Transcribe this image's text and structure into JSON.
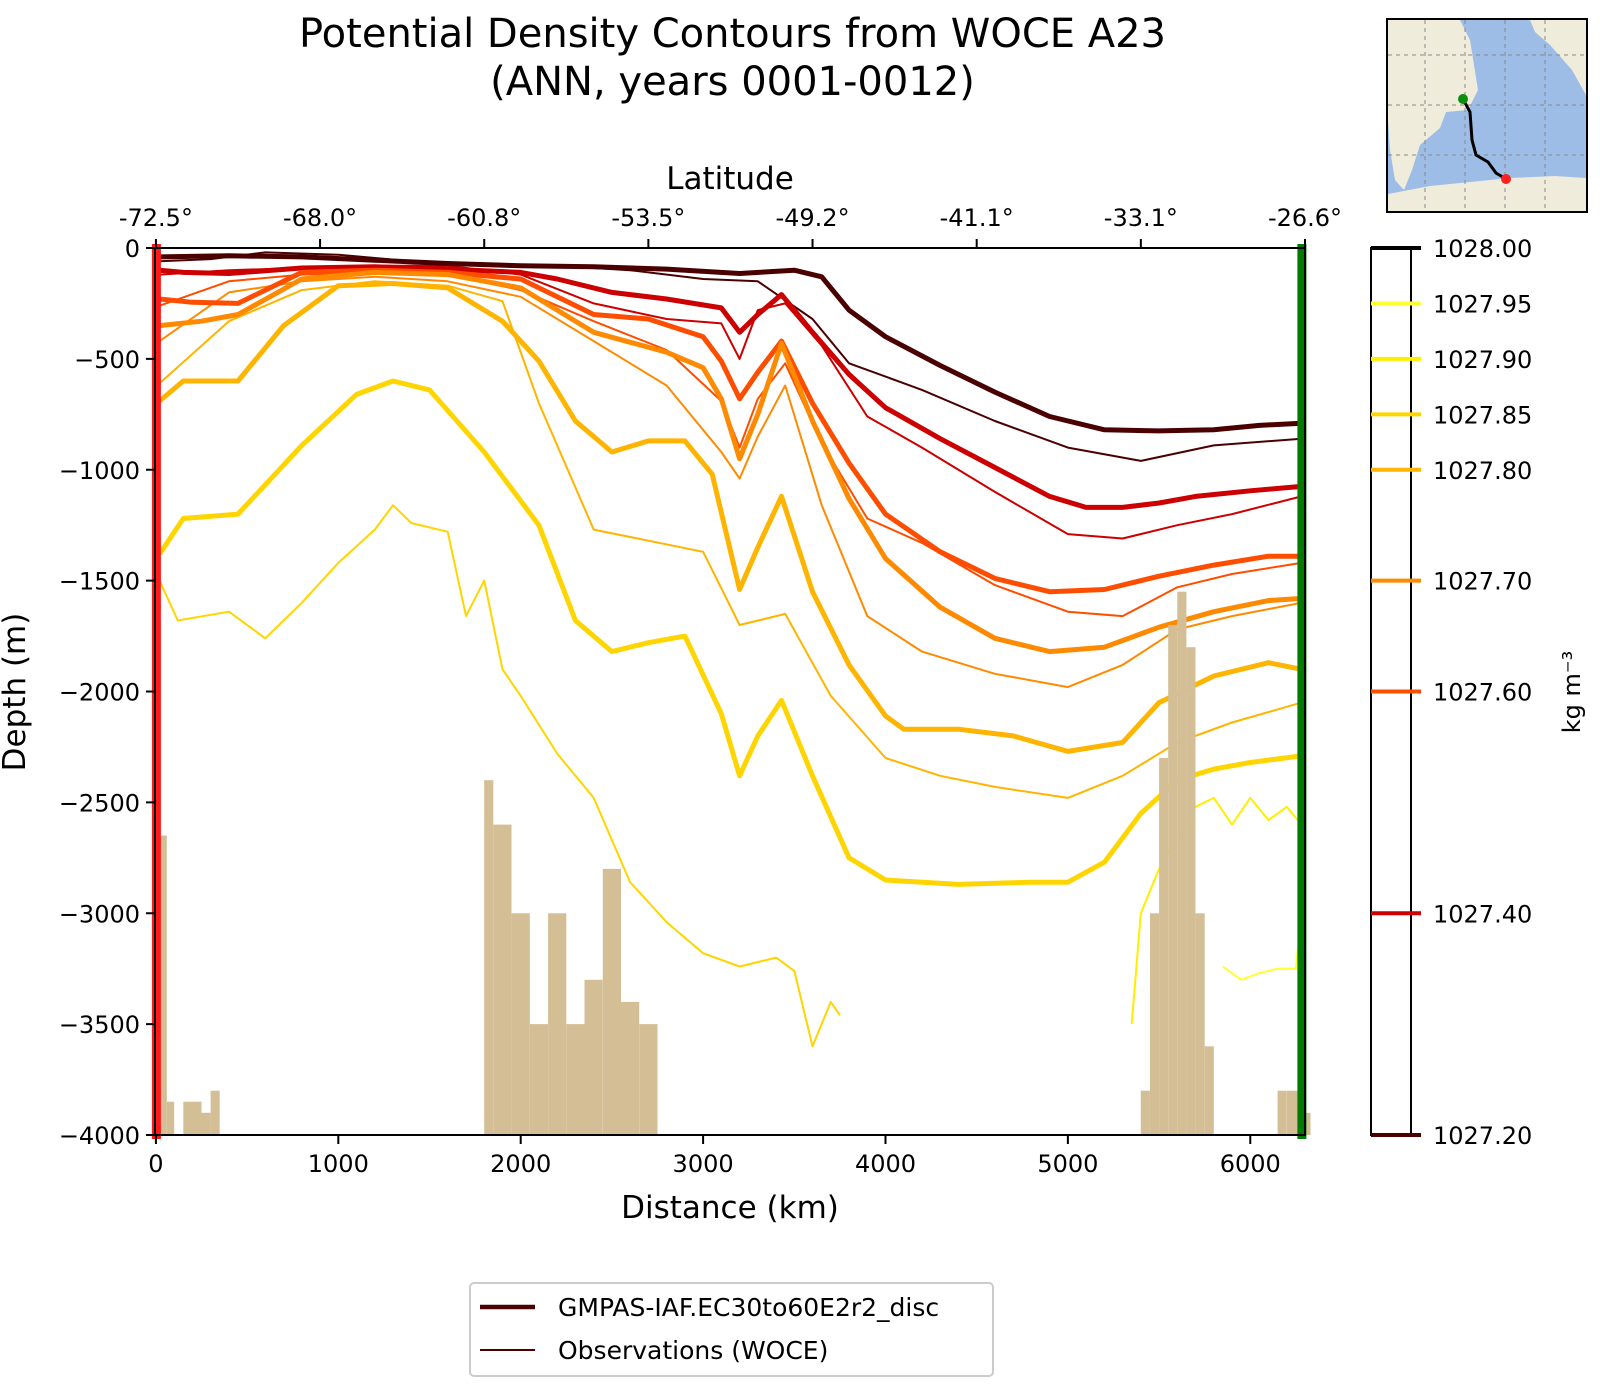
{
  "chart_data": {
    "type": "line",
    "title": "Potential Density Contours from WOCE A23",
    "subtitle": "(ANN, years 0001-0012)",
    "xlabel": "Distance (km)",
    "ylabel": "Depth (m)",
    "top_xlabel": "Latitude",
    "xlim": [
      -5,
      6300
    ],
    "ylim": [
      -4000,
      0
    ],
    "x_ticks": [
      0,
      1000,
      2000,
      3000,
      4000,
      5000,
      6000
    ],
    "x_tick_labels": [
      "0",
      "1000",
      "2000",
      "3000",
      "4000",
      "5000",
      "6000"
    ],
    "y_ticks": [
      0,
      -500,
      -1000,
      -1500,
      -2000,
      -2500,
      -3000,
      -3500,
      -4000
    ],
    "y_tick_labels": [
      "0",
      "−500",
      "−1000",
      "−1500",
      "−2000",
      "−2500",
      "−3000",
      "−3500",
      "−4000"
    ],
    "top_ticks": [
      0,
      900,
      1800,
      2700,
      3600,
      4500,
      5400,
      6300
    ],
    "top_tick_labels": [
      "-72.5°",
      "-68.0°",
      "-60.8°",
      "-53.5°",
      "-49.2°",
      "-41.1°",
      "-33.1°",
      "-26.6°"
    ],
    "colorbar": {
      "label": "kg m⁻³",
      "levels": [
        1027.2,
        1027.4,
        1027.6,
        1027.7,
        1027.8,
        1027.85,
        1027.9,
        1027.95,
        1028.0
      ],
      "tick_labels": [
        "1027.20",
        "1027.40",
        "1027.60",
        "1027.70",
        "1027.80",
        "1027.85",
        "1027.90",
        "1027.95",
        "1028.00"
      ],
      "colors": [
        "#4a0000",
        "#cc0000",
        "#ff4d00",
        "#ff8a00",
        "#ffb400",
        "#ffd500",
        "#ffee00",
        "#ffff33",
        "#ffffff"
      ]
    },
    "legend": {
      "placement": "bottom-center",
      "entries": [
        "GMPAS-IAF.EC30to60E2r2_disc",
        "Observations (WOCE)"
      ]
    },
    "series": [
      {
        "level": 1027.2,
        "color": "#4a0000",
        "x": [
          20,
          400,
          800,
          1200,
          1600,
          2000,
          2400,
          2800,
          3200,
          3500,
          3650,
          3800,
          4000,
          4300,
          4600,
          4900,
          5200,
          5500,
          5800,
          6050,
          6280
        ],
        "y": [
          -40,
          -35,
          -40,
          -55,
          -70,
          -80,
          -85,
          -95,
          -115,
          -100,
          -130,
          -280,
          -400,
          -530,
          -650,
          -760,
          -820,
          -825,
          -820,
          -800,
          -790
        ]
      },
      {
        "level": 1027.4,
        "color": "#cc0000",
        "x": [
          20,
          150,
          400,
          800,
          1200,
          1600,
          2000,
          2200,
          2500,
          2800,
          3100,
          3200,
          3300,
          3430,
          3600,
          3800,
          4000,
          4300,
          4600,
          4900,
          5100,
          5300,
          5500,
          5700,
          6000,
          6280
        ],
        "y": [
          -100,
          -110,
          -115,
          -90,
          -85,
          -95,
          -110,
          -140,
          -200,
          -230,
          -270,
          -380,
          -300,
          -210,
          -380,
          -570,
          -720,
          -860,
          -990,
          -1120,
          -1170,
          -1170,
          -1150,
          -1120,
          -1095,
          -1075
        ]
      },
      {
        "level": 1027.6,
        "color": "#ff4d00",
        "x": [
          20,
          200,
          450,
          800,
          1200,
          1600,
          2000,
          2200,
          2400,
          2700,
          3000,
          3100,
          3200,
          3300,
          3430,
          3600,
          3800,
          4000,
          4300,
          4600,
          4900,
          5200,
          5500,
          5800,
          6100,
          6280
        ],
        "y": [
          -230,
          -245,
          -250,
          -110,
          -100,
          -110,
          -140,
          -220,
          -300,
          -320,
          -400,
          -510,
          -680,
          -560,
          -420,
          -700,
          -970,
          -1200,
          -1370,
          -1490,
          -1550,
          -1540,
          -1480,
          -1430,
          -1390,
          -1390
        ]
      },
      {
        "level": 1027.7,
        "color": "#ff8a00",
        "x": [
          20,
          250,
          450,
          800,
          1200,
          1600,
          2000,
          2200,
          2400,
          2800,
          3000,
          3100,
          3200,
          3300,
          3430,
          3600,
          3800,
          4000,
          4300,
          4600,
          4900,
          5200,
          5500,
          5800,
          6100,
          6280
        ],
        "y": [
          -350,
          -330,
          -300,
          -140,
          -110,
          -120,
          -180,
          -280,
          -380,
          -470,
          -540,
          -680,
          -950,
          -750,
          -430,
          -780,
          -1130,
          -1400,
          -1620,
          -1760,
          -1820,
          -1800,
          -1710,
          -1640,
          -1590,
          -1580
        ]
      },
      {
        "level": 1027.8,
        "color": "#ffb400",
        "x": [
          20,
          150,
          450,
          700,
          1000,
          1300,
          1600,
          1900,
          2100,
          2300,
          2500,
          2700,
          2900,
          3050,
          3200,
          3300,
          3430,
          3600,
          3800,
          4000,
          4100,
          4400,
          4700,
          5000,
          5300,
          5500,
          5800,
          6100,
          6280
        ],
        "y": [
          -690,
          -600,
          -600,
          -350,
          -170,
          -160,
          -180,
          -330,
          -510,
          -780,
          -920,
          -870,
          -870,
          -1020,
          -1540,
          -1350,
          -1120,
          -1550,
          -1880,
          -2110,
          -2170,
          -2170,
          -2200,
          -2270,
          -2230,
          -2050,
          -1930,
          -1870,
          -1900
        ]
      },
      {
        "level": 1027.85,
        "color": "#ffd500",
        "x": [
          20,
          150,
          450,
          800,
          1100,
          1300,
          1500,
          1800,
          2100,
          2300,
          2500,
          2700,
          2900,
          3100,
          3200,
          3300,
          3430,
          3600,
          3800,
          4000,
          4400,
          4800,
          5000,
          5200,
          5400,
          5600,
          5800,
          6000,
          6280
        ],
        "y": [
          -1380,
          -1220,
          -1200,
          -890,
          -660,
          -600,
          -640,
          -920,
          -1250,
          -1680,
          -1820,
          -1780,
          -1750,
          -2100,
          -2380,
          -2200,
          -2040,
          -2380,
          -2750,
          -2850,
          -2870,
          -2860,
          -2860,
          -2770,
          -2550,
          -2400,
          -2350,
          -2320,
          -2290
        ]
      }
    ],
    "obs_series": [
      {
        "level": 1027.2,
        "color": "#4a0000",
        "x": [
          20,
          300,
          600,
          1000,
          1400,
          1800,
          2200,
          2600,
          3000,
          3300,
          3600,
          3800,
          4200,
          4600,
          5000,
          5400,
          5800,
          6280
        ],
        "y": [
          -60,
          -50,
          -20,
          -30,
          -60,
          -70,
          -80,
          -100,
          -140,
          -150,
          -320,
          -520,
          -640,
          -780,
          -900,
          -960,
          -890,
          -860
        ]
      },
      {
        "level": 1027.4,
        "color": "#cc0000",
        "x": [
          20,
          400,
          800,
          1200,
          1600,
          2000,
          2400,
          2800,
          3100,
          3200,
          3300,
          3450,
          3650,
          3900,
          4200,
          4600,
          5000,
          5300,
          5600,
          5900,
          6280
        ],
        "y": [
          -120,
          -100,
          -90,
          -80,
          -80,
          -120,
          -250,
          -320,
          -340,
          -500,
          -280,
          -250,
          -440,
          -760,
          -900,
          -1100,
          -1290,
          -1310,
          -1250,
          -1200,
          -1120
        ]
      },
      {
        "level": 1027.6,
        "color": "#ff4d00",
        "x": [
          20,
          400,
          800,
          1200,
          1600,
          2000,
          2400,
          2800,
          3100,
          3200,
          3300,
          3450,
          3650,
          3900,
          4200,
          4600,
          5000,
          5300,
          5600,
          5900,
          6280
        ],
        "y": [
          -260,
          -150,
          -120,
          -110,
          -120,
          -190,
          -330,
          -460,
          -690,
          -900,
          -680,
          -520,
          -880,
          -1220,
          -1330,
          -1520,
          -1640,
          -1660,
          -1530,
          -1470,
          -1420
        ]
      },
      {
        "level": 1027.7,
        "color": "#ff8a00",
        "x": [
          20,
          400,
          800,
          1200,
          1600,
          2000,
          2400,
          2800,
          3100,
          3200,
          3300,
          3450,
          3650,
          3900,
          4200,
          4600,
          5000,
          5300,
          5600,
          5900,
          6280
        ],
        "y": [
          -420,
          -200,
          -150,
          -130,
          -150,
          -220,
          -420,
          -620,
          -920,
          -1040,
          -850,
          -620,
          -1160,
          -1660,
          -1820,
          -1920,
          -1980,
          -1880,
          -1720,
          -1660,
          -1600
        ]
      },
      {
        "level": 1027.8,
        "color": "#ffb400",
        "x": [
          20,
          400,
          800,
          1200,
          1600,
          1900,
          2100,
          2400,
          2700,
          3000,
          3200,
          3450,
          3700,
          4000,
          4300,
          4600,
          5000,
          5300,
          5600,
          5900,
          6280
        ],
        "y": [
          -610,
          -330,
          -190,
          -150,
          -170,
          -240,
          -700,
          -1270,
          -1320,
          -1370,
          -1700,
          -1650,
          -2020,
          -2300,
          -2380,
          -2430,
          -2480,
          -2380,
          -2230,
          -2140,
          -2050
        ]
      },
      {
        "level": 1027.85,
        "color": "#ffd500",
        "x": [
          20,
          120,
          400,
          600,
          800,
          1000,
          1200,
          1300,
          1400,
          1600,
          1700,
          1800,
          1900,
          2000,
          2200,
          2400,
          2600,
          2800,
          3000,
          3200,
          3400,
          3500,
          3600,
          3700,
          3750
        ],
        "y": [
          -1500,
          -1680,
          -1640,
          -1760,
          -1600,
          -1420,
          -1270,
          -1160,
          -1240,
          -1280,
          -1660,
          -1500,
          -1900,
          -2020,
          -2280,
          -2480,
          -2860,
          -3040,
          -3180,
          -3240,
          -3200,
          -3260,
          -3600,
          -3400,
          -3460
        ]
      },
      {
        "level": 1027.9,
        "color": "#ffee00",
        "x": [
          5350,
          5400,
          5500,
          5600,
          5700,
          5800,
          5900,
          6000,
          6100,
          6200,
          6280
        ],
        "y": [
          -3500,
          -3000,
          -2800,
          -2650,
          -2520,
          -2480,
          -2600,
          -2480,
          -2580,
          -2520,
          -2600
        ]
      },
      {
        "level": 1027.95,
        "color": "#ffff33",
        "x": [
          5850,
          5950,
          6050,
          6150,
          6250,
          6280
        ],
        "y": [
          -3240,
          -3300,
          -3270,
          -3250,
          -3250,
          -3000
        ]
      }
    ],
    "bathymetry": {
      "color": "#d4be96",
      "x": [
        0,
        60,
        100,
        150,
        250,
        300,
        1800,
        1850,
        1950,
        2050,
        2150,
        2250,
        2350,
        2450,
        2550,
        2650,
        2750,
        5400,
        5450,
        5500,
        5550,
        5600,
        5650,
        5700,
        5750,
        5800,
        6150,
        6200,
        6280
      ],
      "y": [
        -2650,
        -3850,
        -4000,
        -3850,
        -3900,
        -3800,
        -2400,
        -2600,
        -3000,
        -3500,
        -3000,
        -3500,
        -3300,
        -2800,
        -3400,
        -3500,
        -4000,
        -3800,
        -3000,
        -2300,
        -1700,
        -1550,
        -1800,
        -3000,
        -3600,
        -4000,
        -3800,
        -3800,
        -3900
      ]
    },
    "transect_markers": [
      {
        "label": "start",
        "color": "#ff1a1a",
        "x": 0
      },
      {
        "label": "end",
        "color": "#007a00",
        "x": 6280
      }
    ],
    "inset_map": {
      "land_color": "#efecdc",
      "ocean_color": "#9dbde6",
      "track_color": "#000000",
      "start_color": "#ff2020",
      "end_color": "#0a8f0a"
    }
  }
}
